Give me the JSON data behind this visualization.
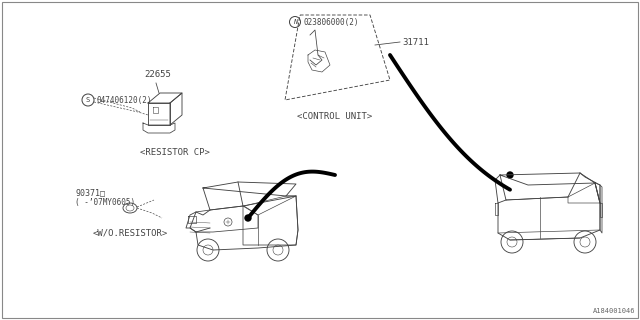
{
  "bg_color": "#ffffff",
  "line_color": "#444444",
  "diagram_ref": "A184001046",
  "part_number_main": "31711",
  "part_bolt_label": "N023806000(2)",
  "part_screw_label": "S047406120(2)",
  "part_22655": "22655",
  "part_90371": "90371□",
  "part_90371_note": "( -’07MY0605)",
  "label_control_unit": "<CONTROL UNIT>",
  "label_resistor_cp": "<RESISTOR CP>",
  "label_wo_resistor": "<W/O.RESISTOR>",
  "fig_width": 6.4,
  "fig_height": 3.2,
  "dpi": 100
}
